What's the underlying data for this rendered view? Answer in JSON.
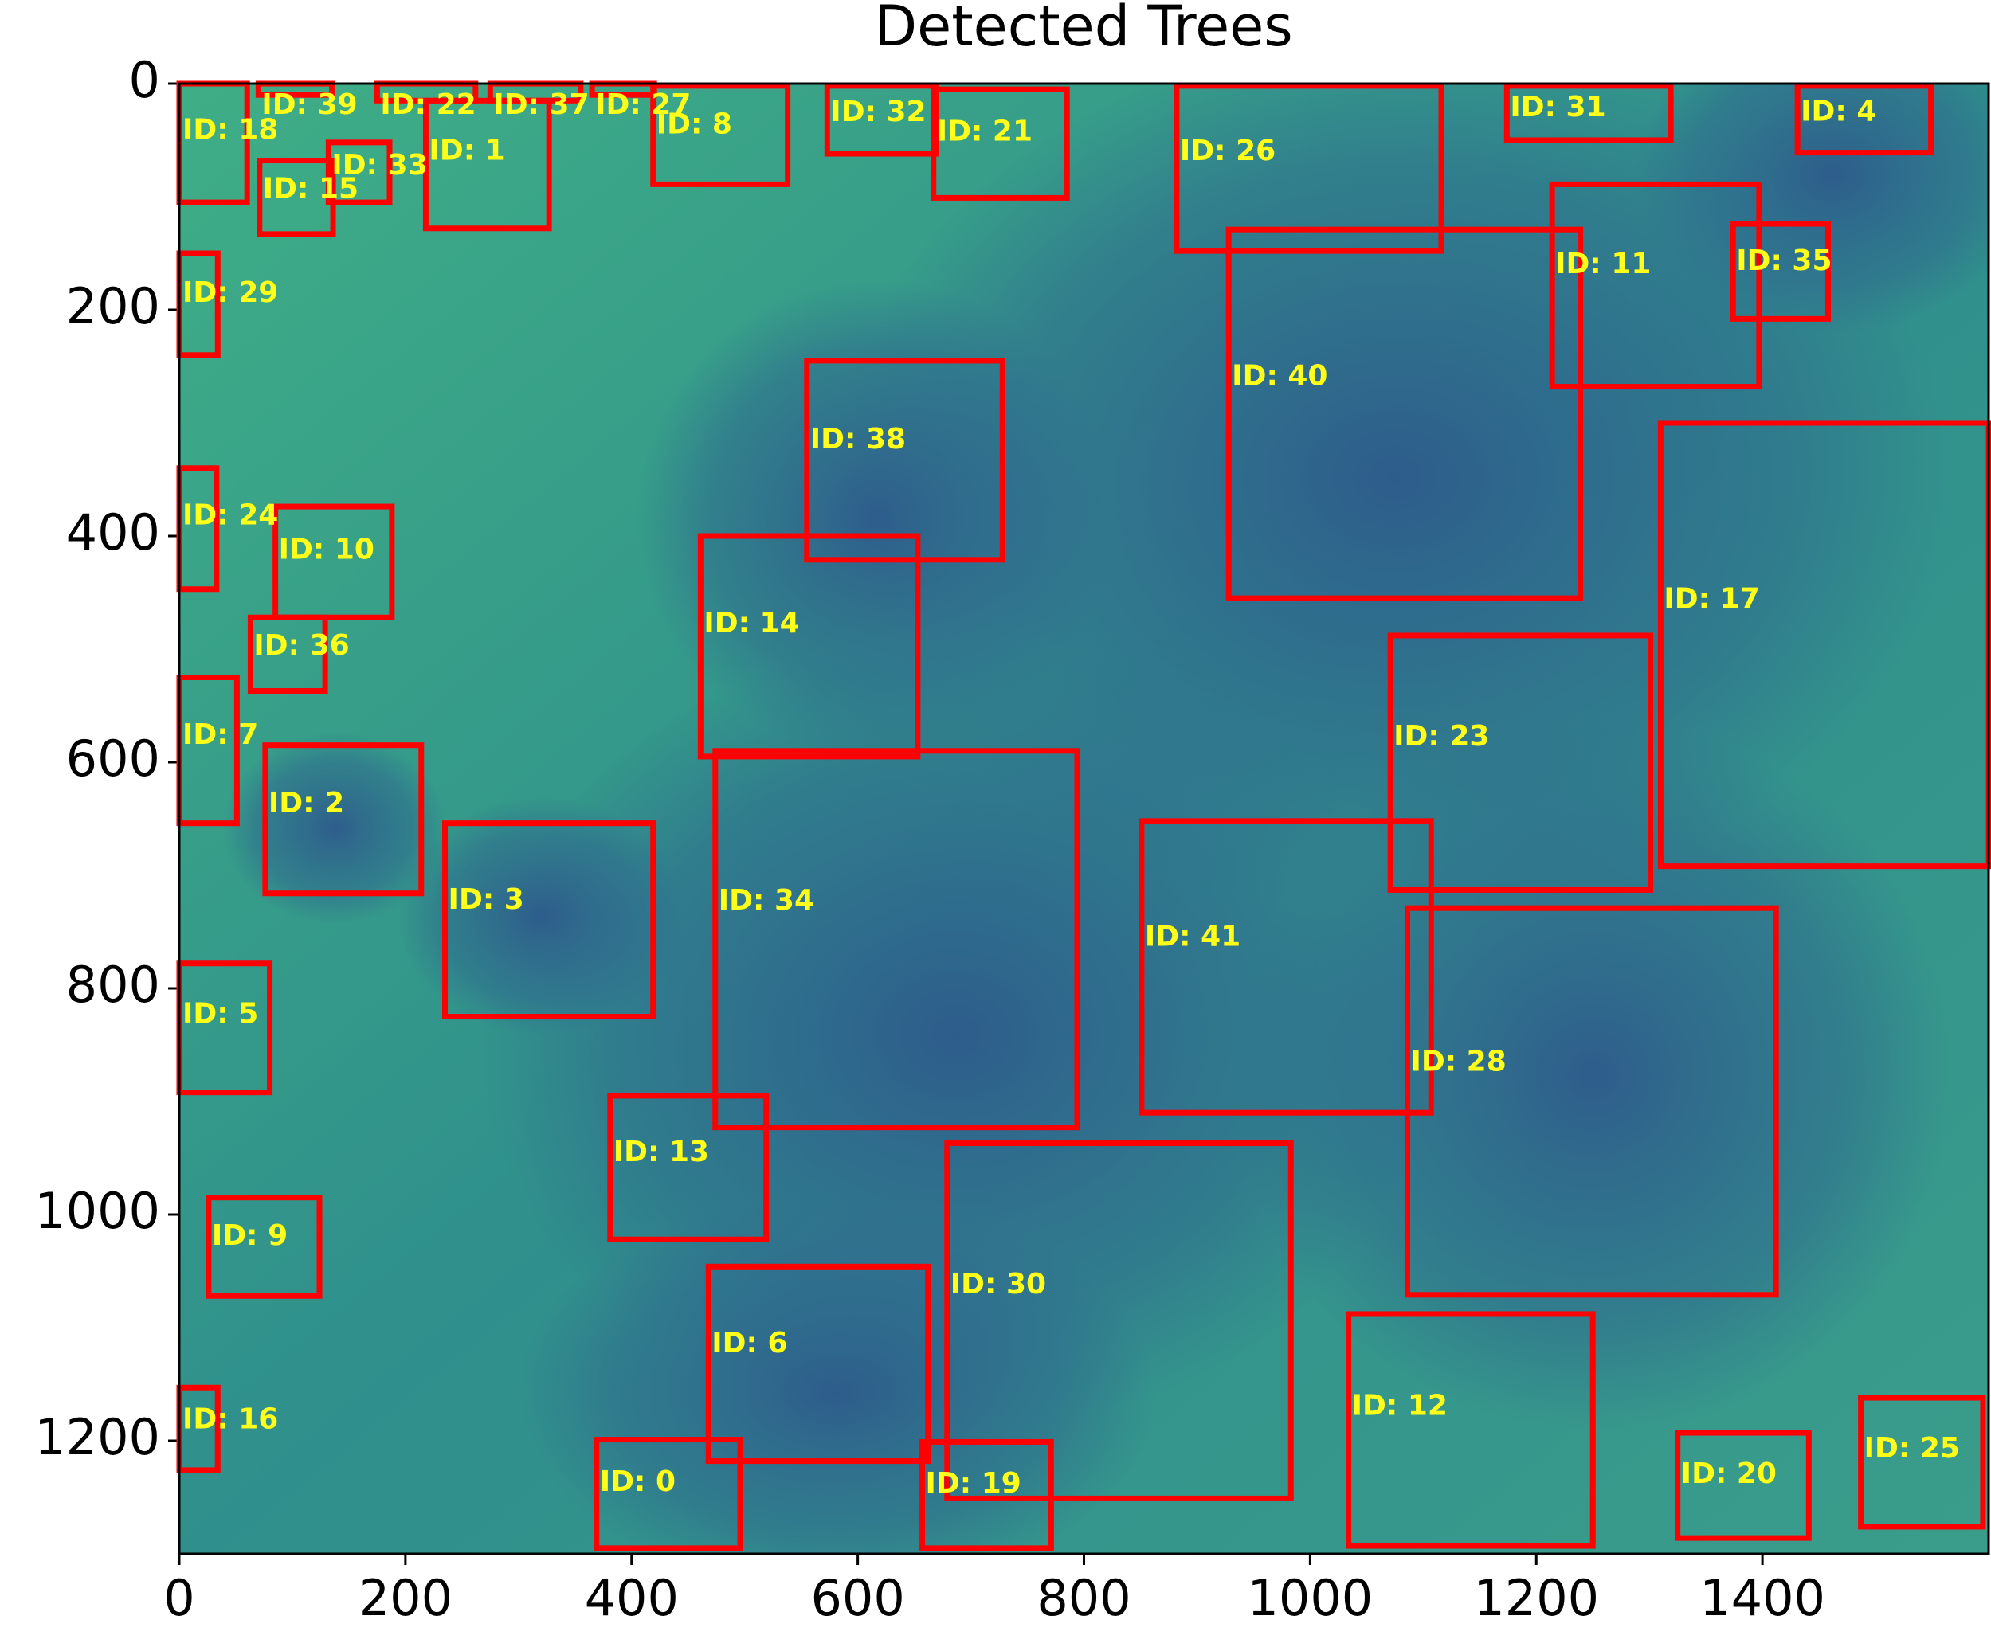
{
  "chart_data": {
    "type": "detection",
    "title": "Detected Trees",
    "xlim": [
      0,
      1600
    ],
    "ylim": [
      1300,
      0
    ],
    "xticks": [
      0,
      200,
      400,
      600,
      800,
      1000,
      1200,
      1400
    ],
    "yticks": [
      0,
      200,
      400,
      600,
      800,
      1000,
      1200
    ],
    "box_color": "#ff0000",
    "label_color": "#ffff1a",
    "boxes": [
      {
        "label": "ID: 18",
        "x": [
          0,
          60
        ],
        "y": [
          0,
          105
        ]
      },
      {
        "label": "ID: 39",
        "x": [
          70,
          135
        ],
        "y": [
          0,
          10
        ]
      },
      {
        "label": "ID: 22",
        "x": [
          175,
          262
        ],
        "y": [
          0,
          15
        ]
      },
      {
        "label": "ID: 37",
        "x": [
          275,
          355
        ],
        "y": [
          0,
          15
        ]
      },
      {
        "label": "ID: 27",
        "x": [
          365,
          420
        ],
        "y": [
          0,
          10
        ]
      },
      {
        "label": "ID: 1",
        "x": [
          218,
          327
        ],
        "y": [
          15,
          128
        ]
      },
      {
        "label": "ID: 33",
        "x": [
          132,
          186
        ],
        "y": [
          52,
          105
        ]
      },
      {
        "label": "ID: 15",
        "x": [
          71,
          136
        ],
        "y": [
          68,
          133
        ]
      },
      {
        "label": "ID: 8",
        "x": [
          419,
          538
        ],
        "y": [
          2,
          89
        ]
      },
      {
        "label": "ID: 32",
        "x": [
          573,
          669
        ],
        "y": [
          2,
          62
        ]
      },
      {
        "label": "ID: 21",
        "x": [
          667,
          785
        ],
        "y": [
          5,
          101
        ]
      },
      {
        "label": "ID: 26",
        "x": [
          882,
          1116
        ],
        "y": [
          2,
          148
        ]
      },
      {
        "label": "ID: 31",
        "x": [
          1174,
          1319
        ],
        "y": [
          2,
          50
        ]
      },
      {
        "label": "ID: 4",
        "x": [
          1431,
          1549
        ],
        "y": [
          2,
          61
        ]
      },
      {
        "label": "ID: 11",
        "x": [
          1214,
          1397
        ],
        "y": [
          89,
          268
        ]
      },
      {
        "label": "ID: 35",
        "x": [
          1374,
          1458
        ],
        "y": [
          124,
          208
        ]
      },
      {
        "label": "ID: 40",
        "x": [
          928,
          1239
        ],
        "y": [
          129,
          455
        ]
      },
      {
        "label": "ID: 29",
        "x": [
          0,
          34
        ],
        "y": [
          150,
          240
        ]
      },
      {
        "label": "ID: 38",
        "x": [
          555,
          728
        ],
        "y": [
          245,
          421
        ]
      },
      {
        "label": "ID: 17",
        "x": [
          1310,
          1600
        ],
        "y": [
          300,
          692
        ]
      },
      {
        "label": "ID: 24",
        "x": [
          0,
          33
        ],
        "y": [
          340,
          447
        ]
      },
      {
        "label": "ID: 10",
        "x": [
          85,
          188
        ],
        "y": [
          374,
          472
        ]
      },
      {
        "label": "ID: 36",
        "x": [
          63,
          129
        ],
        "y": [
          472,
          537
        ]
      },
      {
        "label": "ID: 14",
        "x": [
          461,
          653
        ],
        "y": [
          400,
          595
        ]
      },
      {
        "label": "ID: 7",
        "x": [
          0,
          51
        ],
        "y": [
          525,
          654
        ]
      },
      {
        "label": "ID: 23",
        "x": [
          1071,
          1301
        ],
        "y": [
          488,
          713
        ]
      },
      {
        "label": "ID: 2",
        "x": [
          76,
          214
        ],
        "y": [
          585,
          716
        ]
      },
      {
        "label": "ID: 34",
        "x": [
          474,
          794
        ],
        "y": [
          590,
          923
        ]
      },
      {
        "label": "ID: 3",
        "x": [
          235,
          419
        ],
        "y": [
          654,
          825
        ]
      },
      {
        "label": "ID: 41",
        "x": [
          851,
          1107
        ],
        "y": [
          652,
          910
        ]
      },
      {
        "label": "ID: 28",
        "x": [
          1086,
          1412
        ],
        "y": [
          729,
          1071
        ]
      },
      {
        "label": "ID: 5",
        "x": [
          0,
          80
        ],
        "y": [
          778,
          892
        ]
      },
      {
        "label": "ID: 13",
        "x": [
          381,
          519
        ],
        "y": [
          895,
          1022
        ]
      },
      {
        "label": "ID: 30",
        "x": [
          679,
          983
        ],
        "y": [
          937,
          1251
        ]
      },
      {
        "label": "ID: 9",
        "x": [
          26,
          124
        ],
        "y": [
          985,
          1072
        ]
      },
      {
        "label": "ID: 6",
        "x": [
          468,
          662
        ],
        "y": [
          1046,
          1218
        ]
      },
      {
        "label": "ID: 12",
        "x": [
          1034,
          1250
        ],
        "y": [
          1088,
          1293
        ]
      },
      {
        "label": "ID: 16",
        "x": [
          0,
          34
        ],
        "y": [
          1153,
          1226
        ]
      },
      {
        "label": "ID: 0",
        "x": [
          369,
          496
        ],
        "y": [
          1199,
          1295
        ]
      },
      {
        "label": "ID: 19",
        "x": [
          657,
          771
        ],
        "y": [
          1201,
          1295
        ]
      },
      {
        "label": "ID: 20",
        "x": [
          1325,
          1441
        ],
        "y": [
          1193,
          1286
        ]
      },
      {
        "label": "ID: 25",
        "x": [
          1487,
          1595
        ],
        "y": [
          1162,
          1276
        ]
      }
    ]
  }
}
